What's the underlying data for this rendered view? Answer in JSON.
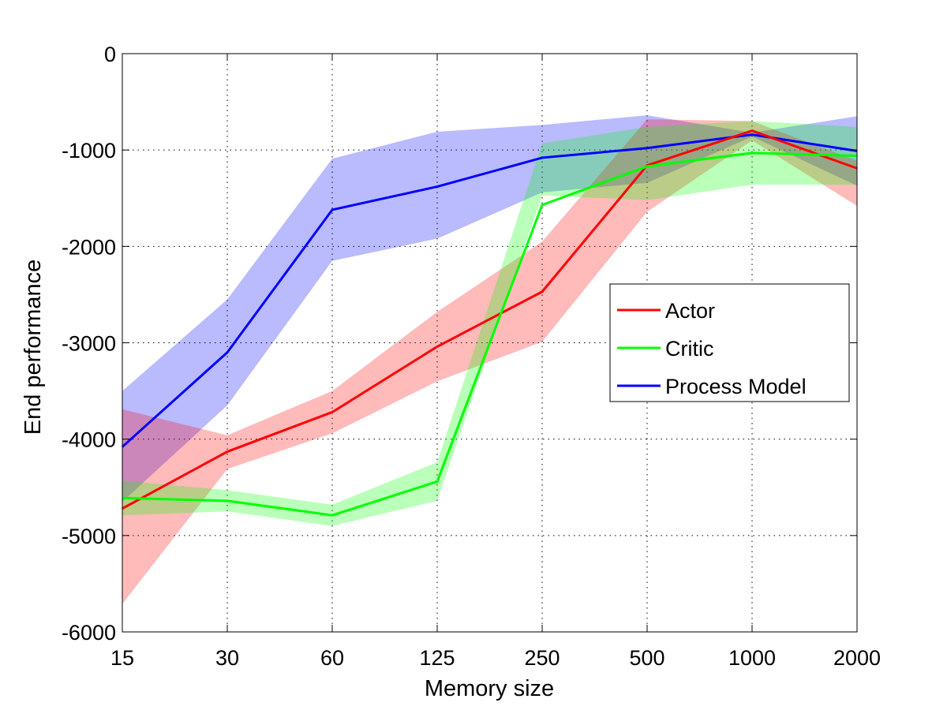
{
  "chart_data": {
    "type": "line",
    "title": "",
    "xlabel": "Memory size",
    "ylabel": "End performance",
    "categories": [
      "15",
      "30",
      "60",
      "125",
      "250",
      "500",
      "1000",
      "2000"
    ],
    "ylim": [
      -6000,
      0
    ],
    "yticks": [
      "0",
      "-1000",
      "-2000",
      "-3000",
      "-4000",
      "-5000",
      "-6000"
    ],
    "grid": true,
    "legend_position": "right",
    "series": [
      {
        "name": "Process Model",
        "color": "#0000ff",
        "band_color": "#b3b3ff",
        "values": [
          -4080,
          -3100,
          -1620,
          -1380,
          -1080,
          -980,
          -840,
          -1010
        ],
        "upper": [
          -3500,
          -2550,
          -1090,
          -810,
          -740,
          -640,
          -820,
          -650
        ],
        "lower": [
          -4650,
          -3650,
          -2150,
          -1920,
          -1440,
          -1340,
          -860,
          -1370
        ]
      },
      {
        "name": "Actor",
        "color": "#ff0000",
        "band_color": "#ffb3b3",
        "values": [
          -4720,
          -4130,
          -3720,
          -3040,
          -2470,
          -1160,
          -800,
          -1190
        ],
        "upper": [
          -3690,
          -3960,
          -3500,
          -2680,
          -1950,
          -680,
          -700,
          -1110
        ],
        "lower": [
          -5710,
          -4310,
          -3940,
          -3400,
          -2990,
          -1640,
          -900,
          -1580
        ]
      },
      {
        "name": "Critic",
        "color": "#00ff00",
        "band_color": "#b3ffb3",
        "values": [
          -4610,
          -4640,
          -4790,
          -4440,
          -1570,
          -1170,
          -1030,
          -1060
        ],
        "upper": [
          -4430,
          -4530,
          -4680,
          -4240,
          -930,
          -760,
          -700,
          -760
        ],
        "lower": [
          -4790,
          -4750,
          -4900,
          -4640,
          -1470,
          -1520,
          -1360,
          -1360
        ]
      }
    ],
    "legend_order": [
      "Actor",
      "Critic",
      "Process Model"
    ]
  }
}
